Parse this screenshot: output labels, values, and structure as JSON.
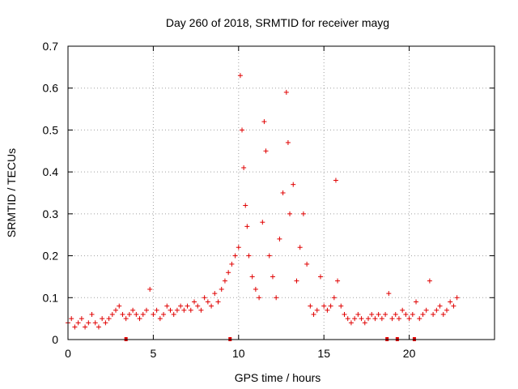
{
  "chart_data": {
    "type": "scatter",
    "title": "Day 260 of 2018, SRMTID for receiver mayg",
    "xlabel": "GPS time / hours",
    "ylabel": "SRMTID / TECUs",
    "xlim": [
      0,
      25
    ],
    "ylim": [
      0,
      0.7
    ],
    "xticks": [
      0,
      5,
      10,
      15,
      20
    ],
    "xtick_labels": [
      "0",
      "5",
      "10",
      "15",
      "20"
    ],
    "yticks": [
      0,
      0.1,
      0.2,
      0.3,
      0.4,
      0.5,
      0.6,
      0.7
    ],
    "ytick_labels": [
      "0",
      "0.1",
      "0.2",
      "0.3",
      "0.4",
      "0.5",
      "0.6",
      "0.7"
    ],
    "grid": true,
    "marker": "+",
    "color": "#e00000",
    "baseline_markers_x": [
      3.4,
      9.5,
      18.7,
      19.3,
      20.3
    ],
    "series": [
      {
        "name": "SRMTID",
        "x": [
          0.0,
          0.2,
          0.4,
          0.6,
          0.8,
          1.0,
          1.2,
          1.4,
          1.6,
          1.8,
          2.0,
          2.2,
          2.4,
          2.6,
          2.8,
          3.0,
          3.2,
          3.4,
          3.6,
          3.8,
          4.0,
          4.2,
          4.4,
          4.6,
          4.8,
          5.0,
          5.2,
          5.4,
          5.6,
          5.8,
          6.0,
          6.2,
          6.4,
          6.6,
          6.8,
          7.0,
          7.2,
          7.4,
          7.6,
          7.8,
          8.0,
          8.2,
          8.4,
          8.6,
          8.8,
          9.0,
          9.2,
          9.4,
          9.6,
          9.8,
          10.0,
          10.1,
          10.2,
          10.3,
          10.4,
          10.5,
          10.6,
          10.8,
          11.0,
          11.2,
          11.4,
          11.5,
          11.6,
          11.8,
          12.0,
          12.2,
          12.4,
          12.6,
          12.8,
          12.9,
          13.0,
          13.2,
          13.4,
          13.6,
          13.8,
          14.0,
          14.2,
          14.4,
          14.6,
          14.8,
          15.0,
          15.2,
          15.4,
          15.6,
          15.7,
          15.8,
          16.0,
          16.2,
          16.4,
          16.6,
          16.8,
          17.0,
          17.2,
          17.4,
          17.6,
          17.8,
          18.0,
          18.2,
          18.4,
          18.6,
          18.8,
          19.0,
          19.2,
          19.4,
          19.6,
          19.8,
          20.0,
          20.2,
          20.4,
          20.6,
          20.8,
          21.0,
          21.2,
          21.4,
          21.6,
          21.8,
          22.0,
          22.2,
          22.4,
          22.6,
          22.8
        ],
        "y": [
          0.04,
          0.05,
          0.03,
          0.04,
          0.05,
          0.03,
          0.04,
          0.06,
          0.04,
          0.03,
          0.05,
          0.04,
          0.05,
          0.06,
          0.07,
          0.08,
          0.06,
          0.05,
          0.06,
          0.07,
          0.06,
          0.05,
          0.06,
          0.07,
          0.12,
          0.06,
          0.07,
          0.05,
          0.06,
          0.08,
          0.07,
          0.06,
          0.07,
          0.08,
          0.07,
          0.08,
          0.07,
          0.09,
          0.08,
          0.07,
          0.1,
          0.09,
          0.08,
          0.11,
          0.09,
          0.12,
          0.14,
          0.16,
          0.18,
          0.2,
          0.22,
          0.63,
          0.5,
          0.41,
          0.32,
          0.27,
          0.2,
          0.15,
          0.12,
          0.1,
          0.28,
          0.52,
          0.45,
          0.2,
          0.15,
          0.1,
          0.24,
          0.35,
          0.59,
          0.47,
          0.3,
          0.37,
          0.14,
          0.22,
          0.3,
          0.18,
          0.08,
          0.06,
          0.07,
          0.15,
          0.08,
          0.07,
          0.08,
          0.1,
          0.38,
          0.14,
          0.08,
          0.06,
          0.05,
          0.04,
          0.05,
          0.06,
          0.05,
          0.04,
          0.05,
          0.06,
          0.05,
          0.06,
          0.05,
          0.06,
          0.11,
          0.05,
          0.06,
          0.05,
          0.07,
          0.06,
          0.05,
          0.06,
          0.09,
          0.05,
          0.06,
          0.07,
          0.14,
          0.06,
          0.07,
          0.08,
          0.06,
          0.07,
          0.09,
          0.08,
          0.1
        ]
      }
    ]
  }
}
